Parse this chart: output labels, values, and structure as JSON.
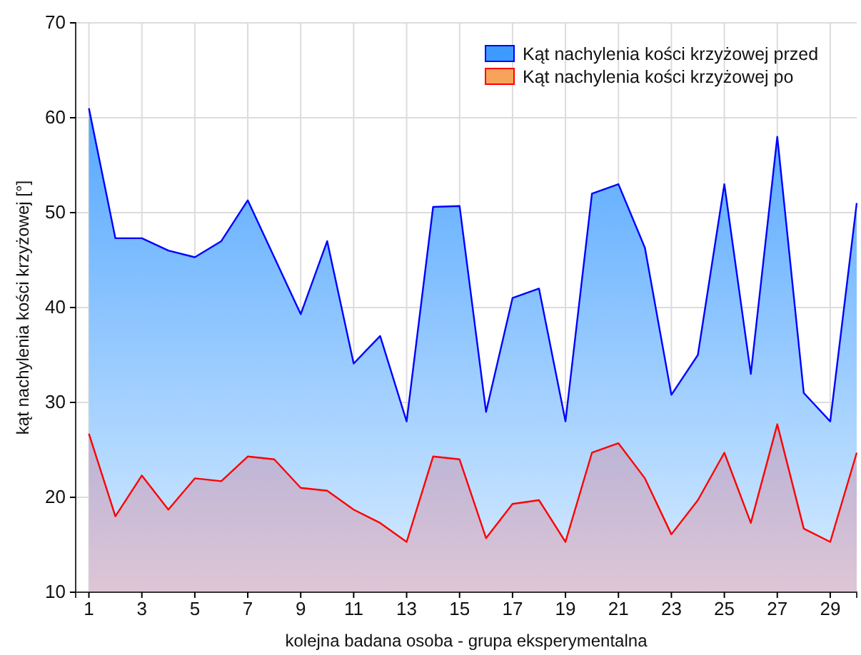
{
  "chart_data": {
    "type": "area",
    "xlabel": "kolejna badana osoba - grupa eksperymentalna",
    "ylabel": "kąt nachylenia kości krzyżowej [°]",
    "x": [
      1,
      2,
      3,
      4,
      5,
      6,
      7,
      8,
      9,
      10,
      11,
      12,
      13,
      14,
      15,
      16,
      17,
      18,
      19,
      20,
      21,
      22,
      23,
      24,
      25,
      26,
      27,
      28,
      29,
      30
    ],
    "series": [
      {
        "name": "Kąt nachylenia kości krzyżowej przed",
        "color": "#0000ff",
        "values": [
          61,
          47.3,
          47.3,
          46,
          45.3,
          47,
          51.3,
          45.3,
          39.3,
          47,
          34.1,
          37,
          28,
          50.6,
          50.7,
          29,
          41,
          42,
          28,
          52,
          53,
          46.3,
          30.8,
          35,
          53,
          33,
          58,
          31,
          28,
          51
        ]
      },
      {
        "name": "Kąt nachylenia kości krzyżowej po",
        "color": "#ff0000",
        "values": [
          26.7,
          18,
          22.3,
          18.7,
          22,
          21.7,
          24.3,
          24,
          21,
          20.7,
          18.7,
          17.3,
          15.3,
          24.3,
          24,
          15.7,
          19.3,
          19.7,
          15.3,
          24.7,
          25.7,
          22,
          16.1,
          19.7,
          24.7,
          17.3,
          27.7,
          16.7,
          15.3,
          24.7
        ]
      }
    ],
    "xlim": [
      0.5,
      30
    ],
    "xticks": [
      1,
      3,
      5,
      7,
      9,
      11,
      13,
      15,
      17,
      19,
      21,
      23,
      25,
      27,
      29
    ],
    "ylim": [
      10,
      70
    ],
    "yticks": [
      10,
      20,
      30,
      40,
      50,
      60,
      70
    ],
    "grid": true,
    "legend": "top right",
    "marker": "none",
    "line_style": "solid"
  }
}
